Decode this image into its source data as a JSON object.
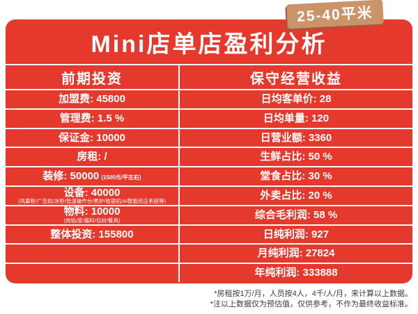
{
  "badge": {
    "text": "25-40平米"
  },
  "title": "Mini店单店盈利分析",
  "colors": {
    "red": "#E6392D",
    "badge_bg": "#CB9468",
    "badge_shadow": "#8F5F3F",
    "line": "#FFFFFF",
    "note_text": "#3C3C3C"
  },
  "table": {
    "left_header": "前期投资",
    "right_header": "保守经营收益",
    "left_rows": [
      {
        "label": "加盟费",
        "value": "45800"
      },
      {
        "label": "管理费",
        "value": "1.5 %"
      },
      {
        "label": "保证金",
        "value": "10000"
      },
      {
        "label": "房租",
        "value": "/"
      },
      {
        "label": "装修",
        "value": "50000",
        "note_inline": "(1500元/平左右)"
      },
      {
        "label": "设备",
        "value": "40000",
        "note_below": "(风幕柜/广告机/冰柜/低温操作台/煮炉/收银机/AI智能巡店系统等)"
      },
      {
        "label": "物料",
        "value": "10000",
        "note_below": "(肉馅/皮/酱料/包材/餐具)"
      },
      {
        "label": "整体投资",
        "value": "155800"
      },
      {},
      {}
    ],
    "right_rows": [
      {
        "label": "日均客单价",
        "value": "28"
      },
      {
        "label": "日均单量",
        "value": "120"
      },
      {
        "label": "日营业额",
        "value": "3360"
      },
      {
        "label": "生鲜占比",
        "value": "50 %"
      },
      {
        "label": "堂食占比",
        "value": "30 %"
      },
      {
        "label": "外卖占比",
        "value": "20 %"
      },
      {
        "label": "综合毛利润",
        "value": "58 %"
      },
      {
        "label": "日纯利润",
        "value": "927"
      },
      {
        "label": "月纯利润",
        "value": "27824"
      },
      {
        "label": "年纯利润",
        "value": "333888"
      }
    ]
  },
  "footnotes": [
    "*房租按1万/月，人员按4人，4千/人/月，来计算以上数据。",
    "*注以上数据仅为预估值，仅供参考，不作为最终收益标准。"
  ]
}
